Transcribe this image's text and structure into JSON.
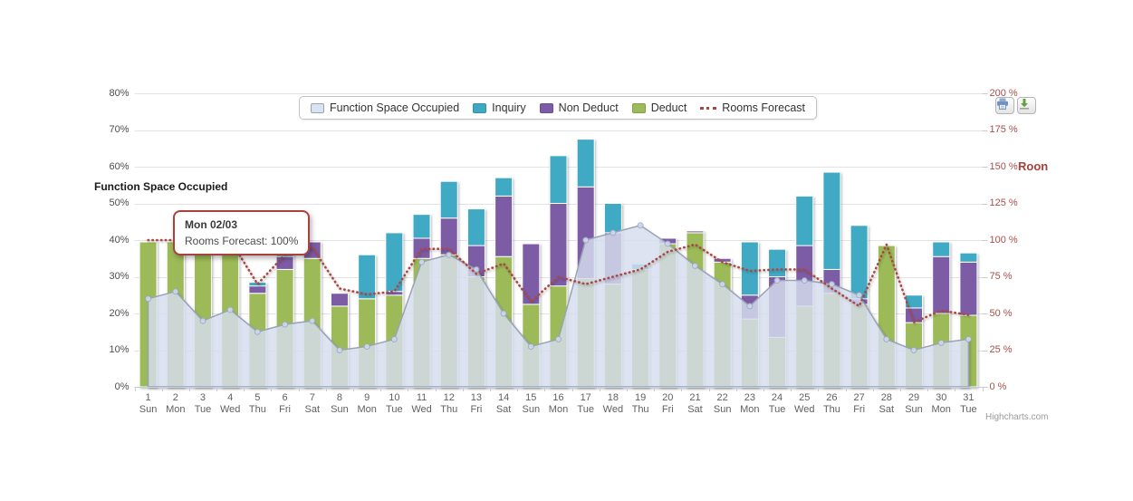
{
  "chart_data": {
    "type": "combo (stacked column + area + dotted line)",
    "title": "",
    "categories": [
      1,
      2,
      3,
      4,
      5,
      6,
      7,
      8,
      9,
      10,
      11,
      12,
      13,
      14,
      15,
      16,
      17,
      18,
      19,
      20,
      21,
      22,
      23,
      24,
      25,
      26,
      27,
      28,
      29,
      30,
      31
    ],
    "weekday_labels": [
      "Sun",
      "Mon",
      "Tue",
      "Wed",
      "Thu",
      "Fri",
      "Sat",
      "Sun",
      "Mon",
      "Tue",
      "Wed",
      "Thu",
      "Fri",
      "Sat",
      "Sun",
      "Mon",
      "Tue",
      "Wed",
      "Thu",
      "Fri",
      "Sat",
      "Sun",
      "Mon",
      "Tue",
      "Wed",
      "Thu",
      "Fri",
      "Sat",
      "Sun",
      "Mon",
      "Tue"
    ],
    "left_axis": {
      "title": "Function Space Occupied",
      "tick_labels": [
        "0%",
        "10%",
        "20%",
        "30%",
        "40%",
        "50%",
        "60%",
        "70%",
        "80%"
      ],
      "tick_values": [
        0,
        10,
        20,
        30,
        40,
        50,
        60,
        70,
        80
      ],
      "min": 0,
      "max": 80,
      "grid": true
    },
    "right_axis": {
      "title": "Roon",
      "tick_labels": [
        "0 %",
        "25 %",
        "50 %",
        "75 %",
        "100 %",
        "125 %",
        "150 %",
        "175 %",
        "200 %"
      ],
      "tick_values": [
        0,
        25,
        50,
        75,
        100,
        125,
        150,
        175,
        200
      ],
      "min": 0,
      "max": 200
    },
    "series": [
      {
        "name": "Function Space Occupied",
        "type": "area",
        "axis": "left",
        "color": "#dbe3f3",
        "line_color": "#99a3b8",
        "values": [
          24,
          26,
          18,
          21,
          15,
          17,
          18,
          10,
          11,
          13,
          34,
          36,
          32,
          20,
          11,
          13,
          40,
          42,
          44,
          39,
          33,
          28,
          22,
          29,
          29,
          28,
          25,
          13,
          10,
          12,
          13
        ]
      },
      {
        "name": "Inquiry",
        "type": "column",
        "stack_position": "top",
        "color": "#3fa9c4",
        "values": [
          0,
          0,
          0,
          0,
          1,
          1,
          0,
          0,
          12,
          16,
          6.5,
          10,
          10,
          5,
          0,
          13,
          13,
          8,
          1.5,
          0,
          0,
          0,
          14.5,
          7.5,
          13.5,
          26.5,
          20,
          0,
          3.5,
          4,
          2.5
        ]
      },
      {
        "name": "Non Deduct",
        "type": "column",
        "stack_position": "middle",
        "color": "#7d5ba6",
        "values": [
          0,
          0,
          0,
          0,
          2,
          3.5,
          4.5,
          3.5,
          0,
          1,
          5.5,
          10,
          8.5,
          16.5,
          16.5,
          22.5,
          25,
          14,
          0,
          1.5,
          0.5,
          1,
          6.5,
          16.5,
          16.5,
          6.5,
          1.5,
          0,
          4,
          15.5,
          14.5
        ]
      },
      {
        "name": "Deduct",
        "type": "column",
        "stack_position": "bottom",
        "color": "#9cbb59",
        "values": [
          39.5,
          39.5,
          39.5,
          39,
          25.5,
          32,
          35,
          22,
          24,
          25,
          35,
          36,
          30,
          35.5,
          22.5,
          27.5,
          29.5,
          28,
          32,
          39,
          42,
          34,
          18.5,
          13.5,
          22,
          25.5,
          22.5,
          38.5,
          17.5,
          20,
          19.5
        ]
      },
      {
        "name": "Rooms Forecast",
        "type": "line",
        "axis": "right",
        "dash": "dot",
        "color": "#aa4643",
        "values": [
          100,
          100,
          100,
          100,
          70,
          90,
          95,
          67,
          63,
          65,
          94,
          94,
          77,
          84,
          58,
          75,
          70,
          75,
          80,
          92,
          97,
          85,
          79,
          80,
          80,
          67,
          55,
          97,
          44,
          52,
          49
        ]
      }
    ],
    "legend_position": "top-center",
    "tooltip": {
      "title": "Mon 02/03",
      "body": "Rooms Forecast: 100%"
    },
    "credit": "Highcharts.com",
    "toolbar": {
      "print_button": "print",
      "download_button": "download"
    }
  }
}
